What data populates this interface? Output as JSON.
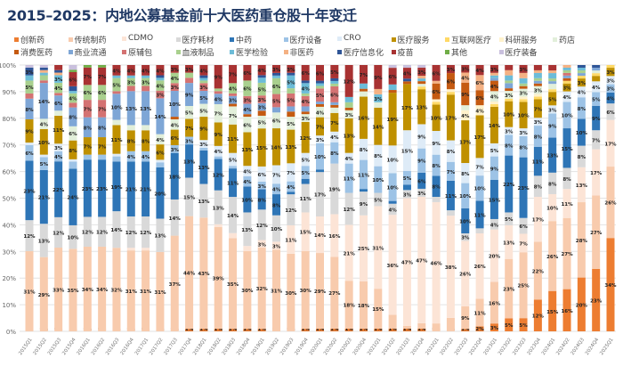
{
  "chart_data": {
    "type": "bar",
    "stacked": true,
    "title": "2015–2025：内地公募基金前十大医药重仓股十年变迁",
    "ylim": [
      0,
      100
    ],
    "yticks": [
      "0%",
      "10%",
      "20%",
      "30%",
      "40%",
      "50%",
      "60%",
      "70%",
      "80%",
      "90%",
      "100%"
    ],
    "grid": true,
    "legend_position": "top",
    "categories": [
      "2015Q1",
      "2015Q2",
      "2015Q3",
      "2015Q4",
      "2016Q1",
      "2016Q2",
      "2016Q3",
      "2016Q4",
      "2017Q1",
      "2017Q2",
      "2017Q3",
      "2017Q4",
      "2018Q1",
      "2018Q2",
      "2018Q3",
      "2018Q4",
      "2019Q1",
      "2019Q2",
      "2019Q3",
      "2019Q4",
      "2020Q1",
      "2020Q2",
      "2020Q3",
      "2020Q4",
      "2021Q1",
      "2021Q2",
      "2021Q3",
      "2021Q4",
      "2022Q1",
      "2022Q2",
      "2022Q3",
      "2022Q4",
      "2023Q1",
      "2023Q2",
      "2023Q3",
      "2023Q4",
      "2024Q1",
      "2024Q2",
      "2024Q3",
      "2024Q4",
      "2025Q1"
    ],
    "series_names": [
      "创新药",
      "传统制药",
      "CDMO",
      "医疗耗材",
      "中药",
      "医疗设备",
      "CRO",
      "医疗服务",
      "互联网医疗",
      "科研服务",
      "药店",
      "消费医药",
      "商业流通",
      "原辅包",
      "血液制品",
      "医学检验",
      "非医药",
      "医疗信息化",
      "疫苗",
      "其他",
      "医疗装备"
    ],
    "colors": [
      "#ed7d31",
      "#f8cbad",
      "#fce4d6",
      "#d9d9d9",
      "#2e75b6",
      "#9dc3e6",
      "#deebf7",
      "#bf9000",
      "#ffd966",
      "#fff2cc",
      "#e2efda",
      "#c55a11",
      "#7ea6d6",
      "#d47272",
      "#a9d08e",
      "#6cbcd8",
      "#f4b183",
      "#2f5597",
      "#a83232",
      "#70ad47",
      "#c9c0dd"
    ],
    "values_by_category": [
      [
        0,
        31,
        0,
        12,
        23,
        6,
        1,
        9,
        0,
        0,
        0,
        0,
        8,
        2,
        5,
        2,
        0,
        3,
        0,
        0,
        1
      ],
      [
        0,
        29,
        0,
        13,
        21,
        5,
        1,
        10,
        0,
        0,
        4,
        0,
        14,
        1,
        2,
        1,
        1,
        1,
        0,
        0,
        1
      ],
      [
        0,
        33,
        0,
        12,
        22,
        4,
        3,
        11,
        0,
        0,
        2,
        0,
        6,
        1,
        4,
        3,
        1,
        1,
        2,
        0,
        0
      ],
      [
        0,
        35,
        0,
        10,
        24,
        3,
        1,
        8,
        0,
        0,
        6,
        0,
        8,
        2,
        4,
        1,
        0,
        2,
        6,
        1,
        2
      ],
      [
        0,
        34,
        0,
        12,
        23,
        2,
        0,
        7,
        0,
        0,
        0,
        0,
        8,
        7,
        6,
        0,
        0,
        0,
        7,
        1,
        0
      ],
      [
        0,
        34,
        0,
        12,
        23,
        2,
        0,
        7,
        0,
        0,
        0,
        0,
        8,
        7,
        6,
        0,
        0,
        0,
        7,
        1,
        0
      ],
      [
        0,
        32,
        0,
        14,
        19,
        2,
        1,
        11,
        0,
        0,
        2,
        0,
        10,
        1,
        5,
        1,
        0,
        0,
        4,
        0,
        0
      ],
      [
        0,
        31,
        1,
        12,
        21,
        4,
        0,
        8,
        0,
        0,
        2,
        0,
        13,
        2,
        3,
        1,
        0,
        0,
        4,
        0,
        0
      ],
      [
        0,
        31,
        1,
        12,
        21,
        4,
        0,
        8,
        0,
        0,
        2,
        0,
        13,
        2,
        3,
        1,
        0,
        0,
        4,
        0,
        0
      ],
      [
        0,
        31,
        0,
        13,
        20,
        2,
        1,
        6,
        0,
        0,
        4,
        0,
        14,
        3,
        4,
        1,
        0,
        1,
        4,
        0,
        0
      ],
      [
        0,
        37,
        0,
        14,
        18,
        3,
        0,
        6,
        0,
        0,
        4,
        1,
        10,
        3,
        4,
        0,
        0,
        0,
        3,
        0,
        0
      ],
      [
        1,
        44,
        0,
        15,
        13,
        3,
        0,
        7,
        0,
        0,
        5,
        0,
        9,
        2,
        2,
        0,
        0,
        0,
        3,
        0,
        0
      ],
      [
        1,
        43,
        0,
        13,
        13,
        1,
        3,
        9,
        0,
        0,
        5,
        0,
        5,
        3,
        1,
        1,
        0,
        1,
        4,
        0,
        0
      ],
      [
        1,
        39,
        1,
        13,
        12,
        1,
        4,
        9,
        0,
        0,
        7,
        0,
        4,
        1,
        1,
        0,
        0,
        0,
        9,
        0,
        0
      ],
      [
        1,
        35,
        2,
        14,
        11,
        1,
        5,
        11,
        0,
        0,
        7,
        1,
        3,
        1,
        4,
        0,
        0,
        0,
        7,
        0,
        0
      ],
      [
        1,
        30,
        2,
        13,
        10,
        4,
        4,
        13,
        0,
        0,
        6,
        1,
        4,
        3,
        6,
        0,
        0,
        0,
        6,
        0,
        0
      ],
      [
        1,
        32,
        3,
        12,
        8,
        3,
        6,
        15,
        0,
        0,
        5,
        2,
        3,
        3,
        5,
        2,
        0,
        1,
        4,
        0,
        0
      ],
      [
        0,
        31,
        3,
        10,
        8,
        4,
        7,
        14,
        0,
        0,
        6,
        0,
        2,
        5,
        6,
        1,
        0,
        1,
        3,
        0,
        0
      ],
      [
        0,
        30,
        11,
        12,
        1,
        4,
        7,
        13,
        0,
        0,
        5,
        2,
        2,
        5,
        2,
        5,
        0,
        1,
        3,
        0,
        0
      ],
      [
        1,
        30,
        15,
        11,
        2,
        5,
        5,
        12,
        0,
        0,
        3,
        1,
        2,
        4,
        1,
        4,
        0,
        1,
        6,
        0,
        0
      ],
      [
        1,
        29,
        14,
        17,
        1,
        10,
        3,
        7,
        0,
        0,
        4,
        1,
        1,
        5,
        1,
        1,
        0,
        1,
        6,
        0,
        0
      ],
      [
        1,
        27,
        16,
        19,
        0,
        8,
        4,
        7,
        0,
        0,
        2,
        1,
        1,
        6,
        1,
        1,
        0,
        1,
        5,
        0,
        0
      ],
      [
        1,
        18,
        21,
        12,
        0,
        11,
        4,
        13,
        0,
        0,
        3,
        1,
        0,
        0,
        2,
        2,
        0,
        0,
        12,
        0,
        0
      ],
      [
        1,
        18,
        25,
        9,
        1,
        11,
        8,
        16,
        0,
        0,
        2,
        1,
        0,
        0,
        0,
        2,
        0,
        0,
        7,
        0,
        0
      ],
      [
        1,
        15,
        31,
        5,
        0,
        10,
        8,
        14,
        0,
        0,
        2,
        0,
        0,
        0,
        0,
        3,
        2,
        0,
        9,
        0,
        0
      ],
      [
        1,
        5,
        36,
        4,
        1,
        10,
        10,
        19,
        0,
        0,
        0,
        1,
        0,
        0,
        0,
        2,
        0,
        0,
        6,
        0,
        1
      ],
      [
        1,
        1,
        47,
        3,
        2,
        5,
        15,
        17,
        0,
        0,
        0,
        1,
        0,
        0,
        0,
        0,
        0,
        1,
        4,
        0,
        1
      ],
      [
        1,
        2,
        47,
        3,
        6,
        9,
        9,
        13,
        1,
        0,
        1,
        1,
        0,
        0,
        0,
        1,
        1,
        0,
        3,
        0,
        1
      ],
      [
        0,
        3,
        46,
        2,
        8,
        8,
        9,
        10,
        1,
        1,
        0,
        6,
        0,
        0,
        0,
        0,
        1,
        0,
        6,
        0,
        0
      ],
      [
        0,
        5,
        38,
        2,
        11,
        7,
        8,
        17,
        1,
        1,
        0,
        6,
        0,
        0,
        0,
        0,
        0,
        0,
        3,
        0,
        0
      ],
      [
        1,
        9,
        26,
        3,
        10,
        10,
        8,
        17,
        0,
        4,
        2,
        9,
        0,
        0,
        0,
        0,
        4,
        0,
        3,
        0,
        0
      ],
      [
        2,
        11,
        26,
        2,
        11,
        10,
        7,
        17,
        0,
        4,
        0,
        6,
        0,
        0,
        0,
        0,
        6,
        0,
        4,
        0,
        0
      ],
      [
        3,
        16,
        20,
        4,
        15,
        9,
        5,
        14,
        1,
        1,
        4,
        4,
        1,
        0,
        0,
        1,
        1,
        0,
        3,
        0,
        0
      ],
      [
        5,
        23,
        13,
        5,
        22,
        8,
        3,
        10,
        1,
        0,
        3,
        1,
        2,
        0,
        1,
        2,
        2,
        0,
        2,
        0,
        0
      ],
      [
        5,
        25,
        7,
        6,
        23,
        8,
        3,
        10,
        1,
        1,
        3,
        1,
        0,
        0,
        1,
        2,
        2,
        0,
        3,
        0,
        0
      ],
      [
        12,
        22,
        17,
        8,
        11,
        8,
        3,
        7,
        1,
        1,
        3,
        1,
        1,
        0,
        1,
        2,
        1,
        0,
        2,
        0,
        0
      ],
      [
        15,
        26,
        10,
        8,
        13,
        9,
        3,
        5,
        1,
        0,
        2,
        0,
        1,
        0,
        1,
        2,
        1,
        0,
        2,
        0,
        0
      ],
      [
        16,
        27,
        11,
        8,
        15,
        10,
        4,
        3,
        1,
        0,
        0,
        1,
        1,
        1,
        1,
        1,
        1,
        0,
        0,
        0,
        0
      ],
      [
        20,
        28,
        13,
        8,
        10,
        8,
        4,
        3,
        1,
        0,
        0,
        0,
        1,
        0,
        1,
        1,
        0,
        1,
        0,
        0,
        0
      ],
      [
        23,
        27,
        17,
        7,
        9,
        5,
        4,
        2,
        1,
        0,
        1,
        0,
        1,
        0,
        0,
        0,
        0,
        1,
        0,
        0,
        0
      ],
      [
        34,
        26,
        17,
        6,
        4,
        3,
        3,
        3,
        1,
        0,
        0,
        0,
        0,
        0,
        0,
        0,
        0,
        0,
        0,
        0,
        0
      ]
    ]
  }
}
